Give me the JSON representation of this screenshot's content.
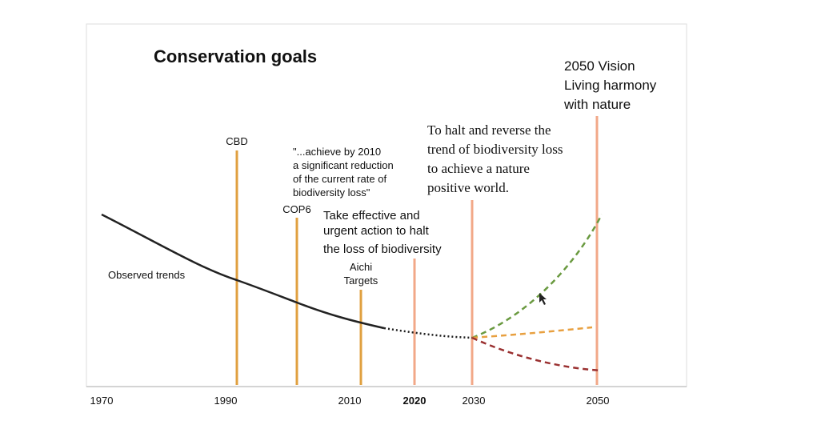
{
  "title": "Conservation goals",
  "events": [
    {
      "lines": [
        "CBD"
      ]
    },
    {
      "lines": [
        "COP6"
      ]
    },
    {
      "lines": [
        "Aichi",
        "Targets"
      ]
    }
  ],
  "quote_2010": [
    "\"...achieve by 2010",
    "a significant reduction",
    "of the current rate of",
    "biodiversity loss\""
  ],
  "goal_2020": [
    "Take effective and",
    "urgent action to halt",
    "the loss of biodiversity"
  ],
  "goal_2030": [
    "To halt and reverse the",
    "trend of biodiversity loss",
    "to achieve a nature",
    "positive world."
  ],
  "vision_2050": [
    "2050 Vision",
    "Living harmony",
    "with nature"
  ],
  "observed_label": "Observed trends",
  "axis_labels": [
    "1970",
    "1990",
    "2010",
    "2020",
    "2030",
    "2050"
  ]
}
